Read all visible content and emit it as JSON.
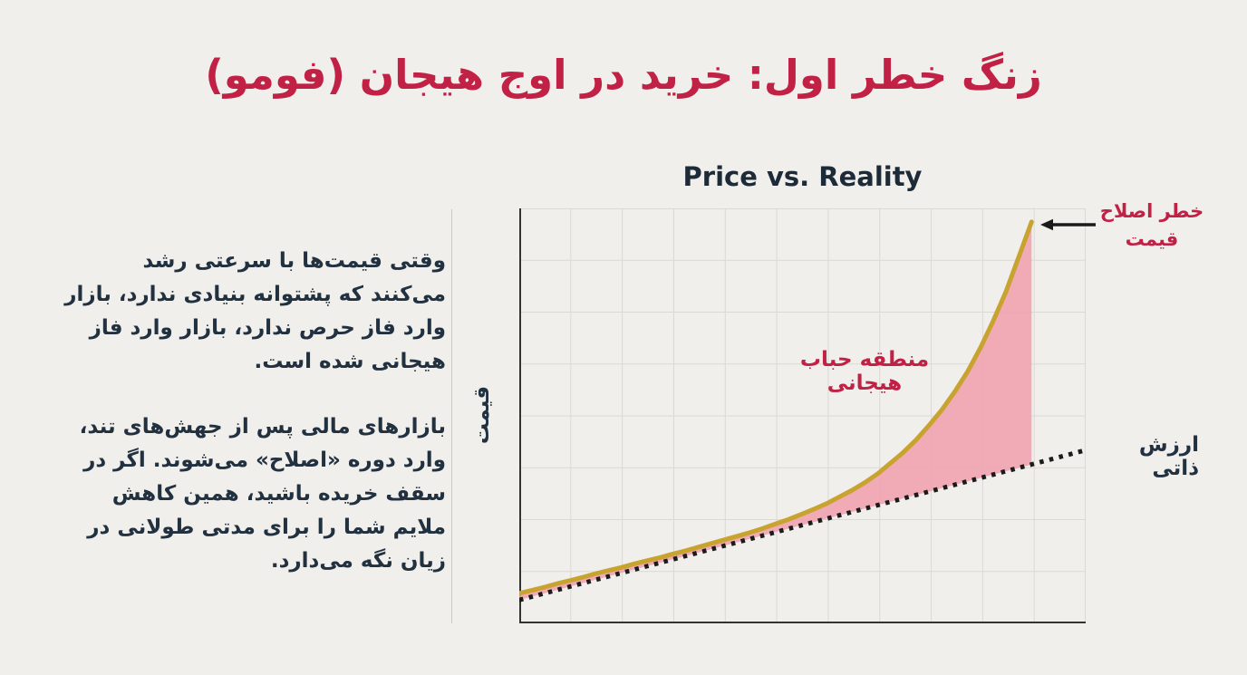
{
  "page": {
    "background_color": "#f0efec",
    "accent_red": "#c02145",
    "text_navy": "#223140"
  },
  "title": {
    "text": "زنگ خطر اول: خرید در اوج هیجان (فومو)",
    "color": "#c02145"
  },
  "intro": {
    "paragraph1": "وقتی قیمت‌ها با سرعتی رشد می‌کنند که پشتوانه بنیادی ندارد، بازار وارد فاز حرص ندارد، بازار وارد فاز هیجانی شده است.",
    "paragraph2": "بازارهای مالی پس از جهش‌های تند، وارد دوره «اصلاح» می‌شوند. اگر در سقف خریده باشید، همین کاهش ملایم شما را برای مدتی طولانی در زیان نگه می‌دارد."
  },
  "chart_data": {
    "type": "area",
    "title": "Price vs. Reality",
    "xlabel": "",
    "ylabel": "قیمت",
    "xlim": [
      0,
      11
    ],
    "ylim": [
      0,
      8
    ],
    "grid": true,
    "grid_cols": 11,
    "grid_rows": 8,
    "grid_color": "#dad9d5",
    "axis_color": "#34332f",
    "tick_labels": "none",
    "legend": "none",
    "series": [
      {
        "name": "price",
        "color": "#c8a32f",
        "line_style": "solid",
        "line_width": 5,
        "points": [
          [
            0,
            0.58
          ],
          [
            0.25,
            0.64
          ],
          [
            0.5,
            0.7
          ],
          [
            0.75,
            0.77
          ],
          [
            1,
            0.83
          ],
          [
            1.24,
            0.89
          ],
          [
            1.49,
            0.96
          ],
          [
            1.74,
            1.02
          ],
          [
            1.99,
            1.08
          ],
          [
            2.24,
            1.15
          ],
          [
            2.49,
            1.21
          ],
          [
            2.74,
            1.27
          ],
          [
            2.99,
            1.34
          ],
          [
            3.23,
            1.4
          ],
          [
            3.48,
            1.47
          ],
          [
            3.73,
            1.54
          ],
          [
            3.98,
            1.61
          ],
          [
            4.23,
            1.68
          ],
          [
            4.48,
            1.75
          ],
          [
            4.73,
            1.83
          ],
          [
            4.98,
            1.92
          ],
          [
            5.22,
            2.0
          ],
          [
            5.47,
            2.1
          ],
          [
            5.72,
            2.2
          ],
          [
            5.97,
            2.31
          ],
          [
            6.22,
            2.44
          ],
          [
            6.47,
            2.57
          ],
          [
            6.72,
            2.72
          ],
          [
            6.97,
            2.89
          ],
          [
            7.21,
            3.09
          ],
          [
            7.46,
            3.3
          ],
          [
            7.71,
            3.54
          ],
          [
            7.96,
            3.82
          ],
          [
            8.21,
            4.12
          ],
          [
            8.46,
            4.47
          ],
          [
            8.71,
            4.86
          ],
          [
            8.96,
            5.32
          ],
          [
            9.2,
            5.82
          ],
          [
            9.45,
            6.39
          ],
          [
            9.7,
            7.06
          ],
          [
            9.95,
            7.74
          ]
        ]
      },
      {
        "name": "intrinsic_value",
        "color": "#1b1b1b",
        "line_style": "dotted",
        "line_width": 5,
        "points": [
          [
            0,
            0.45
          ],
          [
            11,
            3.34
          ]
        ]
      }
    ],
    "fill_between": {
      "upper": "price",
      "lower": "intrinsic_value",
      "x_end": 9.95,
      "color": "#efa2af",
      "opacity": 0.88
    },
    "annotations": {
      "bubble_zone": {
        "text": "منطقه حباب هیجانی",
        "color": "#c02145"
      },
      "correction_risk": {
        "text": "خطر اصلاح قیمت",
        "color": "#c02145",
        "arrow_direction": "left",
        "arrow_color": "#1b1b1b"
      },
      "intrinsic_value": {
        "text": "ارزش ذاتی",
        "color": "#223140"
      }
    }
  }
}
